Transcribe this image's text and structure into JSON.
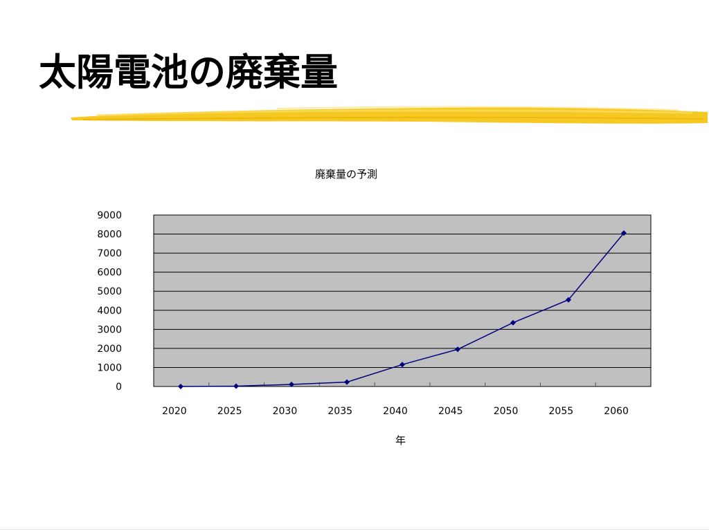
{
  "slide": {
    "title": "太陽電池の廃棄量"
  },
  "colors": {
    "plot_background": "#c0c0c0",
    "series_line": "#000080",
    "brush_stroke": "#f5c518"
  },
  "chart_data": {
    "type": "line",
    "title": "廃棄量の予測",
    "xlabel": "年",
    "ylabel": "",
    "categories": [
      "2020",
      "2025",
      "2030",
      "2035",
      "2040",
      "2045",
      "2050",
      "2055",
      "2060"
    ],
    "series": [
      {
        "values": [
          0,
          20,
          110,
          230,
          1150,
          1950,
          3350,
          4550,
          8050
        ]
      }
    ],
    "ylim": [
      0,
      9000
    ],
    "yticks": [
      "0",
      "1000",
      "2000",
      "3000",
      "4000",
      "5000",
      "6000",
      "7000",
      "8000",
      "9000"
    ],
    "grid": true,
    "legend": "none"
  }
}
